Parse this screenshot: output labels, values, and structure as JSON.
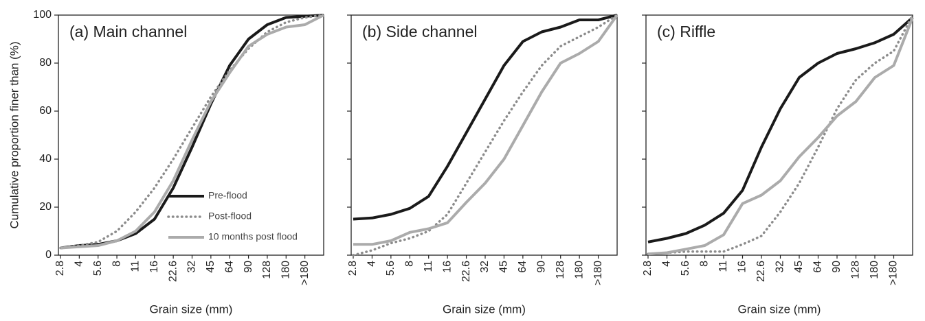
{
  "chart_data": [
    {
      "type": "line",
      "title": "(a) Main channel",
      "xlabel": "Grain size (mm)",
      "ylabel": "Cumulative proportion finer than (%)",
      "categories": [
        "2.8",
        "4",
        "5.6",
        "8",
        "11",
        "16",
        "22.6",
        "32",
        "45",
        "64",
        "90",
        "128",
        "180",
        ">180",
        null
      ],
      "ylim": [
        0,
        100
      ],
      "yticks": [
        0,
        20,
        40,
        60,
        80,
        100
      ],
      "show_ytick_labels": true,
      "legend": "lower right",
      "series": [
        {
          "name": "Pre-flood",
          "color": "#1a1a1a",
          "line_style": "solid",
          "values": [
            3,
            4,
            4.5,
            6,
            9,
            15,
            28,
            45,
            63,
            79,
            90,
            96,
            99,
            99.5,
            100
          ]
        },
        {
          "name": "Post-flood",
          "color": "#8c8c8c",
          "line_style": "dotted",
          "values": [
            3,
            4,
            5.5,
            10,
            18,
            28,
            40,
            53,
            66,
            77,
            86,
            93,
            97,
            99,
            100
          ]
        },
        {
          "name": "10 months post flood",
          "color": "#ababab",
          "line_style": "solid",
          "values": [
            3,
            3.5,
            4,
            6,
            10,
            18,
            31,
            48,
            64,
            76,
            87,
            92,
            95,
            96,
            100
          ]
        }
      ]
    },
    {
      "type": "line",
      "title": "(b) Side channel",
      "xlabel": "Grain size (mm)",
      "categories": [
        "2.8",
        "4",
        "5.6",
        "8",
        "11",
        "16",
        "22.6",
        "32",
        "45",
        "64",
        "90",
        "128",
        "180",
        ">180",
        null
      ],
      "ylim": [
        0,
        100
      ],
      "yticks": [
        0,
        20,
        40,
        60,
        80,
        100
      ],
      "show_ytick_labels": false,
      "series": [
        {
          "color": "#1a1a1a",
          "line_style": "solid",
          "values": [
            15,
            15.5,
            17,
            19.5,
            24.5,
            37,
            51,
            65,
            79,
            89,
            93,
            95,
            98,
            98,
            100
          ]
        },
        {
          "color": "#8c8c8c",
          "line_style": "dotted",
          "values": [
            0,
            2,
            5,
            7,
            10,
            17,
            30,
            43,
            56,
            68,
            79,
            87,
            91,
            95,
            100
          ]
        },
        {
          "color": "#ababab",
          "line_style": "solid",
          "values": [
            4.5,
            4.5,
            6,
            9.5,
            11,
            13.5,
            22,
            30,
            40,
            54,
            68,
            80,
            84,
            89,
            100
          ]
        }
      ]
    },
    {
      "type": "line",
      "title": "(c) Riffle",
      "xlabel": "Grain size (mm)",
      "categories": [
        "2.8",
        "4",
        "5.6",
        "8",
        "11",
        "16",
        "22.6",
        "32",
        "45",
        "64",
        "90",
        "128",
        "180",
        ">180",
        null
      ],
      "ylim": [
        0,
        100
      ],
      "yticks": [
        0,
        20,
        40,
        60,
        80,
        100
      ],
      "show_ytick_labels": false,
      "series": [
        {
          "color": "#1a1a1a",
          "line_style": "solid",
          "values": [
            5.5,
            7,
            9,
            12.5,
            17.5,
            27,
            45,
            61,
            74,
            80,
            84,
            86,
            88.5,
            92,
            99
          ]
        },
        {
          "color": "#8c8c8c",
          "line_style": "dotted",
          "values": [
            0.5,
            1,
            1.5,
            1.5,
            1.5,
            4.5,
            8,
            18,
            30,
            45,
            61,
            73,
            80,
            85,
            100
          ]
        },
        {
          "color": "#ababab",
          "line_style": "solid",
          "values": [
            0.5,
            1,
            2.5,
            4,
            8.5,
            21.5,
            25,
            31,
            41,
            49,
            58,
            64,
            74,
            79,
            99
          ]
        }
      ]
    }
  ]
}
